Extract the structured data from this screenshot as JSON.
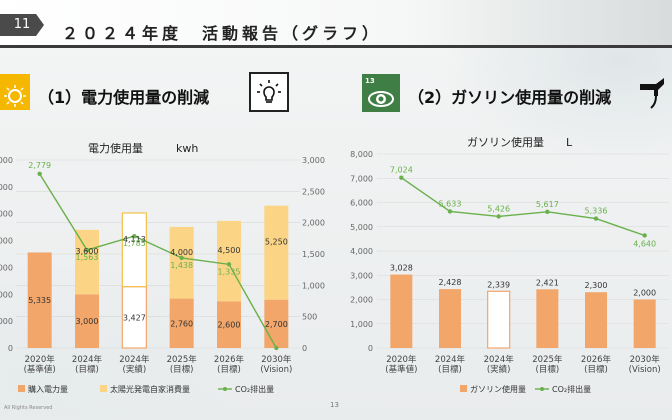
{
  "header": {
    "slide_number": "11",
    "title": "２０２４年度　活動報告（グラフ）"
  },
  "section1": {
    "heading": "（1）電力使用量の削減"
  },
  "section2": {
    "heading": "（2）ガソリン使用量の削減"
  },
  "footer": {
    "rights": "All Rights Reserved",
    "page": "13"
  },
  "icons": {
    "sdg7": "sdg7-sun-icon",
    "bulb": "lightbulb-icon",
    "sdg13": "sdg13-earth-eye-icon",
    "pump": "fuel-pump-icon"
  },
  "colors": {
    "purchased": "#f2a66a",
    "solar": "#fbd585",
    "co2": "#6ab04c",
    "gasoline": "#f2a66a"
  },
  "chart_data": [
    {
      "type": "bar",
      "title": "電力使用量　　　kwh",
      "categories": [
        "2020年\n(基準値)",
        "2024年\n(目標)",
        "2024年\n(実績)",
        "2025年\n(目標)",
        "2026年\n(目標)",
        "2030年\n(Vision)"
      ],
      "series": [
        {
          "name": "購入電力量",
          "values": [
            5335,
            3000,
            3427,
            2760,
            2600,
            2700
          ],
          "value_labels": [
            "5,335",
            "3,000",
            "3,427",
            "2,760",
            "2,600",
            "2,700"
          ]
        },
        {
          "name": "太陽光発電自家消費量",
          "values": [
            0,
            3600,
            4113,
            4000,
            4500,
            5250
          ],
          "value_labels": [
            "",
            "3,600",
            "4,113",
            "4,000",
            "4,500",
            "5,250"
          ]
        },
        {
          "name": "CO2排出量",
          "axis": "right",
          "type": "line",
          "values": [
            2779,
            1563,
            1785,
            1438,
            1335,
            0
          ],
          "value_labels": [
            "2,779",
            "1,563",
            "1,785",
            "1,438",
            "1,335",
            ""
          ]
        }
      ],
      "left_ticks": [
        "0",
        "000",
        "000",
        "000",
        "000",
        "000",
        "000",
        "000"
      ],
      "right_ticks": [
        "0",
        "500",
        "1,000",
        "1,500",
        "2,000",
        "2,500",
        "3,000"
      ],
      "right_ylim": [
        0,
        3000
      ],
      "left_ylim": [
        0,
        10500
      ],
      "legend": [
        "購入電力量",
        "太陽光発電自家消費量",
        "CO₂排出量"
      ],
      "legend_position": "bottom"
    },
    {
      "type": "bar",
      "title": "ガソリン使用量　　L",
      "categories": [
        "2020年\n(基準値)",
        "2024年\n(目標)",
        "2024年\n(実績)",
        "2025年\n(目標)",
        "2026年\n(目標)",
        "2030年\n(Vision)"
      ],
      "series": [
        {
          "name": "ガソリン使用量",
          "values": [
            3028,
            2428,
            2339,
            2421,
            2300,
            2000
          ],
          "value_labels": [
            "3,028",
            "2,428",
            "2,339",
            "2,421",
            "2,300",
            "2,000"
          ]
        },
        {
          "name": "CO2排出量",
          "type": "line",
          "values": [
            7024,
            5633,
            5426,
            5617,
            5336,
            4640
          ],
          "value_labels": [
            "7,024",
            "5,633",
            "5,426",
            "5,617",
            "5,336",
            "4,640"
          ]
        }
      ],
      "ticks": [
        "0",
        "1,000",
        "2,000",
        "3,000",
        "4,000",
        "5,000",
        "6,000",
        "7,000",
        "8,000"
      ],
      "ylim": [
        0,
        8000
      ],
      "legend": [
        "ガソリン使用量",
        "CO₂排出量"
      ],
      "legend_position": "bottom"
    }
  ]
}
